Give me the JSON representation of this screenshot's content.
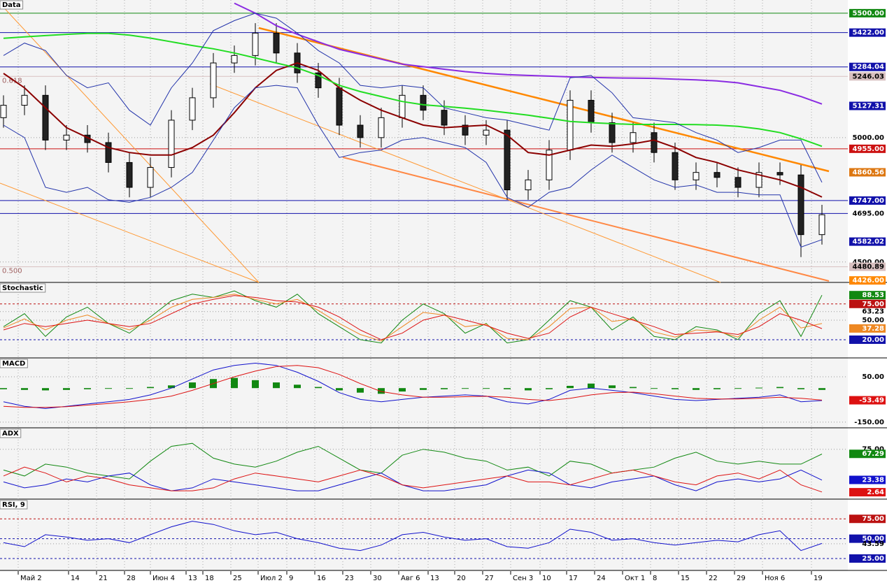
{
  "chart_data": [
    {
      "type": "candlestick",
      "title": "Data",
      "open": [
        5080,
        5130,
        5170,
        4990,
        5010,
        4980,
        4900,
        4800,
        4880,
        5070,
        5160,
        5300,
        5330,
        5420,
        5340,
        5260,
        5200,
        5050,
        5000,
        5080,
        5170,
        5110,
        5050,
        5010,
        5030,
        4790,
        4830,
        4950,
        5150,
        5060,
        4980,
        5020,
        4940,
        4830,
        4860,
        4840,
        4800,
        4860,
        4850,
        4610
      ],
      "high": [
        5170,
        5210,
        5210,
        5050,
        5050,
        5020,
        4940,
        4920,
        5110,
        5200,
        5340,
        5370,
        5460,
        5460,
        5380,
        5300,
        5240,
        5090,
        5120,
        5210,
        5210,
        5150,
        5090,
        5070,
        5070,
        4870,
        4990,
        5190,
        5190,
        5100,
        5060,
        5060,
        4980,
        4900,
        4900,
        4880,
        4900,
        4900,
        4890,
        4730
      ],
      "low": [
        5040,
        5090,
        4950,
        4950,
        4940,
        4860,
        4760,
        4760,
        4840,
        5030,
        5120,
        5260,
        5290,
        5300,
        5220,
        5160,
        5010,
        4960,
        4960,
        5040,
        5070,
        5010,
        4970,
        4970,
        4750,
        4750,
        4790,
        4910,
        5020,
        4940,
        4940,
        4900,
        4790,
        4790,
        4800,
        4760,
        4760,
        4810,
        4520,
        4570
      ],
      "close": [
        5130,
        5170,
        4990,
        5010,
        4980,
        4900,
        4800,
        4880,
        5070,
        5160,
        5300,
        5330,
        5420,
        5340,
        5260,
        5200,
        5050,
        5000,
        5080,
        5170,
        5110,
        5050,
        5010,
        5030,
        4790,
        4830,
        4950,
        5150,
        5060,
        4980,
        5020,
        4940,
        4830,
        4860,
        4840,
        4800,
        4860,
        4850,
        4610,
        4690
      ],
      "series": [
        {
          "name": "MA fast",
          "color": "#8b0000",
          "values": [
            5258,
            5200,
            5120,
            5040,
            5000,
            4960,
            4940,
            4930,
            4930,
            4960,
            5010,
            5100,
            5200,
            5270,
            5300,
            5270,
            5200,
            5150,
            5110,
            5080,
            5050,
            5040,
            5045,
            5050,
            5010,
            4940,
            4930,
            4950,
            4970,
            4965,
            4975,
            4990,
            4960,
            4920,
            4900,
            4870,
            4850,
            4830,
            4800,
            4761
          ]
        },
        {
          "name": "MA mid",
          "color": "#22dd22",
          "values": [
            5399,
            5405,
            5410,
            5415,
            5419,
            5419,
            5412,
            5400,
            5385,
            5370,
            5357,
            5340,
            5320,
            5300,
            5280,
            5250,
            5210,
            5185,
            5165,
            5145,
            5132,
            5125,
            5118,
            5110,
            5100,
            5090,
            5078,
            5065,
            5060,
            5056,
            5053,
            5053,
            5053,
            5052,
            5050,
            5045,
            5035,
            5020,
            4995,
            4965
          ]
        },
        {
          "name": "MA slow",
          "color": "#8a2be2",
          "values": [
            null,
            null,
            null,
            null,
            null,
            null,
            null,
            null,
            null,
            null,
            null,
            5540,
            5500,
            5450,
            5415,
            5385,
            5355,
            5335,
            5315,
            5295,
            5285,
            5275,
            5265,
            5258,
            5253,
            5250,
            5247,
            5244,
            5242,
            5240,
            5239,
            5238,
            5235,
            5232,
            5228,
            5220,
            5205,
            5190,
            5165,
            5135
          ]
        },
        {
          "name": "BB upper",
          "color": "#2233aa",
          "values": [
            5330,
            5380,
            5350,
            5250,
            5200,
            5220,
            5110,
            5050,
            5200,
            5300,
            5430,
            5470,
            5500,
            5480,
            5420,
            5350,
            5300,
            5210,
            5200,
            5210,
            5200,
            5120,
            5100,
            5080,
            5070,
            5050,
            5030,
            5240,
            5250,
            5180,
            5080,
            5070,
            5060,
            5020,
            4990,
            4940,
            4960,
            4990,
            4990,
            4820
          ]
        },
        {
          "name": "BB lower",
          "color": "#2233aa",
          "values": [
            5050,
            5000,
            4800,
            4780,
            4800,
            4750,
            4740,
            4760,
            4800,
            4860,
            4990,
            5120,
            5200,
            5210,
            5200,
            5050,
            4920,
            4940,
            4950,
            4990,
            5000,
            4980,
            4960,
            4900,
            4760,
            4720,
            4780,
            4800,
            4870,
            4930,
            4880,
            4830,
            4800,
            4810,
            4780,
            4780,
            4770,
            4770,
            4560,
            4590
          ]
        }
      ],
      "ylim": [
        4418,
        5553
      ],
      "yticks": [
        {
          "value": 5500,
          "label": "5500.00"
        },
        {
          "value": 5422,
          "label": "5422.00"
        },
        {
          "value": 5284.04,
          "label": "5284.04"
        },
        {
          "value": 5246.03,
          "label": "5246.03"
        },
        {
          "value": 5127.31,
          "label": "5127.31"
        },
        {
          "value": 5000,
          "label": "5000.00"
        },
        {
          "value": 4955,
          "label": "4955.00"
        },
        {
          "value": 4860.56,
          "label": "4860.56"
        },
        {
          "value": 4747,
          "label": "4747.00"
        },
        {
          "value": 4695,
          "label": "4695.00"
        },
        {
          "value": 4582.02,
          "label": "4582.02"
        },
        {
          "value": 4500,
          "label": "4500.00"
        },
        {
          "value": 4480.89,
          "label": "4480.89"
        },
        {
          "value": 4426,
          "label": "4426.00"
        }
      ],
      "ytick_colors": [
        "#118811",
        "#1111aa",
        "#1111aa",
        "#d8c0c0",
        "#1111aa",
        null,
        "#cc1111",
        "#dd7711",
        "#1111aa",
        "#ffffff",
        "#1111aa",
        null,
        "#d8c0c0",
        "#ff8800"
      ],
      "ytick_lines": [
        true,
        true,
        true,
        true,
        false,
        false,
        true,
        false,
        true,
        true,
        false,
        false,
        true,
        false
      ],
      "annotations": [
        {
          "value": 5246.03,
          "label": "0.618"
        },
        {
          "value": 4480.89,
          "label": "0.500"
        }
      ]
    },
    {
      "type": "line",
      "title": "Stochastic",
      "series": [
        {
          "name": "%K",
          "color": "#118811",
          "values": [
            40,
            60,
            25,
            55,
            70,
            45,
            30,
            55,
            80,
            90,
            85,
            95,
            80,
            70,
            90,
            60,
            40,
            20,
            15,
            50,
            75,
            60,
            30,
            45,
            15,
            20,
            50,
            80,
            70,
            35,
            55,
            25,
            20,
            40,
            35,
            20,
            60,
            80,
            25,
            88.53
          ]
        },
        {
          "name": "%D",
          "color": "#ee8822",
          "values": [
            38,
            52,
            35,
            50,
            58,
            45,
            35,
            50,
            70,
            82,
            85,
            90,
            82,
            75,
            82,
            65,
            45,
            28,
            18,
            40,
            62,
            58,
            40,
            44,
            22,
            20,
            40,
            68,
            70,
            48,
            52,
            32,
            24,
            35,
            33,
            24,
            50,
            70,
            38,
            45
          ]
        },
        {
          "name": "Slow",
          "color": "#dd1111",
          "values": [
            35,
            45,
            40,
            45,
            50,
            45,
            40,
            45,
            60,
            75,
            82,
            88,
            85,
            80,
            78,
            70,
            55,
            35,
            20,
            30,
            50,
            58,
            50,
            42,
            30,
            22,
            30,
            55,
            70,
            60,
            50,
            40,
            28,
            30,
            32,
            28,
            40,
            60,
            50,
            37
          ]
        }
      ],
      "ylim": [
        -8,
        107
      ],
      "yticks": [
        {
          "value": 88.53,
          "label": "88.53"
        },
        {
          "value": 75,
          "label": "75.00"
        },
        {
          "value": 63.23,
          "label": "63.23"
        },
        {
          "value": 50,
          "label": "50.00"
        },
        {
          "value": 37.28,
          "label": "37.28"
        },
        {
          "value": 20,
          "label": "20.00"
        }
      ],
      "ytick_colors": [
        "#118811",
        "#bb1111",
        null,
        null,
        "#ee8822",
        "#1111aa"
      ],
      "ytick_lines": [
        false,
        true,
        false,
        false,
        false,
        true
      ]
    },
    {
      "type": "line",
      "title": "MACD",
      "series": [
        {
          "name": "Histogram",
          "type": "bar",
          "color": "#118811",
          "values": [
            -5,
            -8,
            -10,
            -8,
            -5,
            -2,
            0,
            5,
            12,
            25,
            40,
            45,
            35,
            25,
            15,
            5,
            -10,
            -20,
            -25,
            -15,
            -8,
            -5,
            -3,
            -2,
            -5,
            -10,
            -5,
            10,
            20,
            12,
            5,
            0,
            -5,
            -8,
            -5,
            -3,
            2,
            5,
            -5,
            -8
          ]
        },
        {
          "name": "MACD",
          "color": "#1111cc",
          "values": [
            -60,
            -80,
            -90,
            -80,
            -70,
            -60,
            -50,
            -30,
            0,
            40,
            80,
            100,
            110,
            100,
            70,
            30,
            -20,
            -50,
            -60,
            -50,
            -40,
            -35,
            -30,
            -35,
            -60,
            -70,
            -50,
            -10,
            0,
            -10,
            -20,
            -35,
            -50,
            -55,
            -50,
            -45,
            -40,
            -30,
            -60,
            -55
          ]
        },
        {
          "name": "Signal",
          "color": "#dd1111",
          "values": [
            -80,
            -85,
            -85,
            -82,
            -75,
            -68,
            -60,
            -50,
            -35,
            -10,
            20,
            50,
            75,
            95,
            100,
            90,
            60,
            20,
            -15,
            -30,
            -40,
            -40,
            -38,
            -36,
            -40,
            -50,
            -55,
            -45,
            -30,
            -20,
            -18,
            -25,
            -35,
            -45,
            -48,
            -48,
            -45,
            -40,
            -45,
            -53
          ]
        }
      ],
      "ylim": [
        -175,
        130
      ],
      "yticks": [
        {
          "value": 50,
          "label": "50.00"
        },
        {
          "value": -53.49,
          "label": "-53.49"
        },
        {
          "value": -150,
          "label": "-150.00"
        }
      ],
      "ytick_colors": [
        null,
        "#dd1111",
        null
      ],
      "ytick_lines": [
        false,
        false,
        false
      ]
    },
    {
      "type": "line",
      "title": "ADX",
      "series": [
        {
          "name": "ADX",
          "color": "#118811",
          "values": [
            40,
            30,
            50,
            45,
            35,
            30,
            25,
            55,
            80,
            85,
            60,
            50,
            45,
            55,
            70,
            80,
            60,
            40,
            35,
            65,
            75,
            70,
            60,
            55,
            40,
            45,
            30,
            55,
            50,
            35,
            40,
            45,
            60,
            70,
            55,
            50,
            55,
            50,
            50,
            67
          ]
        },
        {
          "name": "+DI",
          "color": "#1111cc",
          "values": [
            20,
            10,
            15,
            25,
            20,
            30,
            35,
            15,
            5,
            10,
            25,
            20,
            15,
            10,
            5,
            5,
            15,
            25,
            35,
            15,
            5,
            5,
            10,
            15,
            30,
            40,
            35,
            15,
            10,
            20,
            25,
            30,
            15,
            5,
            20,
            25,
            20,
            25,
            40,
            23
          ]
        },
        {
          "name": "-DI",
          "color": "#dd1111",
          "values": [
            30,
            45,
            35,
            20,
            30,
            25,
            15,
            10,
            5,
            5,
            10,
            25,
            35,
            30,
            25,
            20,
            30,
            40,
            30,
            15,
            10,
            15,
            20,
            25,
            30,
            20,
            20,
            15,
            25,
            35,
            40,
            30,
            20,
            15,
            30,
            35,
            25,
            40,
            15,
            3
          ]
        }
      ],
      "ylim": [
        -9,
        110
      ],
      "yticks": [
        {
          "value": 75,
          "label": "75.00"
        },
        {
          "value": 67.29,
          "label": "67.29"
        },
        {
          "value": 23.38,
          "label": "23.38"
        },
        {
          "value": 2.64,
          "label": "2.64"
        }
      ],
      "ytick_colors": [
        null,
        "#118811",
        "#1111cc",
        "#dd1111"
      ],
      "ytick_lines": [
        false,
        false,
        false,
        false
      ]
    },
    {
      "type": "line",
      "title": "RSI, 9",
      "series": [
        {
          "name": "RSI",
          "color": "#1111cc",
          "values": [
            45,
            40,
            55,
            52,
            48,
            50,
            45,
            55,
            65,
            72,
            68,
            60,
            55,
            58,
            50,
            45,
            38,
            35,
            42,
            55,
            58,
            52,
            48,
            50,
            40,
            38,
            45,
            62,
            58,
            48,
            50,
            45,
            42,
            45,
            48,
            46,
            55,
            60,
            35,
            44
          ]
        }
      ],
      "ylim": [
        10,
        99
      ],
      "yticks": [
        {
          "value": 75,
          "label": "75.00"
        },
        {
          "value": 50,
          "label": "50.00"
        },
        {
          "value": 43.59,
          "label": "43.59"
        },
        {
          "value": 25,
          "label": "25.00"
        }
      ],
      "ytick_colors": [
        "#bb1111",
        "#1111aa",
        null,
        "#1111aa"
      ],
      "ytick_lines": [
        true,
        true,
        false,
        true
      ]
    }
  ],
  "x_labels": [
    "Май 2",
    "14",
    "21",
    "28",
    "Июн 4",
    "13",
    "18",
    "25",
    "Июл 2",
    "9",
    "16",
    "23",
    "30",
    "Авг 6",
    "13",
    "20",
    "27",
    "Сен 3",
    "10",
    "17",
    "24",
    "Окт 1",
    "8",
    "15",
    "22",
    "29",
    "Ноя 6",
    "19"
  ]
}
